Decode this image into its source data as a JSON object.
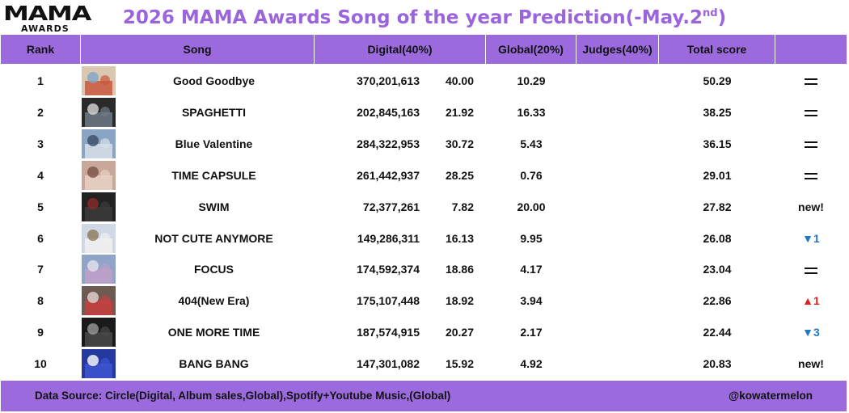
{
  "logo": {
    "main": "MAMA",
    "sub": "AWARDS"
  },
  "title": {
    "text": "2026 MAMA Awards Song of the year Prediction(-May.2",
    "sup": "nd",
    "tail": ")"
  },
  "colors": {
    "accent": "#9b6bde",
    "title": "#9a64dd",
    "down": "#1f76c4",
    "up": "#e02020"
  },
  "headers": {
    "rank": "Rank",
    "song": "Song",
    "digital": "Digital(40%)",
    "global": "Global(20%)",
    "judges": "Judges(40%)",
    "total": "Total score",
    "change": ""
  },
  "chart_data": {
    "type": "table",
    "columns": [
      "Rank",
      "Song",
      "Digital(40%)",
      "",
      "Global(20%)",
      "Judges(40%)",
      "Total score",
      ""
    ],
    "rows": [
      {
        "rank": "1",
        "song": "Good Goodbye",
        "streams": "370,201,613",
        "digital_score": "40.00",
        "global": "10.29",
        "judges": "",
        "total": "50.29",
        "change_type": "same",
        "change": ""
      },
      {
        "rank": "2",
        "song": "SPAGHETTI",
        "streams": "202,845,163",
        "digital_score": "21.92",
        "global": "16.33",
        "judges": "",
        "total": "38.25",
        "change_type": "same",
        "change": ""
      },
      {
        "rank": "3",
        "song": "Blue Valentine",
        "streams": "284,322,953",
        "digital_score": "30.72",
        "global": "5.43",
        "judges": "",
        "total": "36.15",
        "change_type": "same",
        "change": ""
      },
      {
        "rank": "4",
        "song": "TIME CAPSULE",
        "streams": "261,442,937",
        "digital_score": "28.25",
        "global": "0.76",
        "judges": "",
        "total": "29.01",
        "change_type": "same",
        "change": ""
      },
      {
        "rank": "5",
        "song": "SWIM",
        "streams": "72,377,261",
        "digital_score": "7.82",
        "global": "20.00",
        "judges": "",
        "total": "27.82",
        "change_type": "new",
        "change": "new!"
      },
      {
        "rank": "6",
        "song": "NOT CUTE ANYMORE",
        "streams": "149,286,311",
        "digital_score": "16.13",
        "global": "9.95",
        "judges": "",
        "total": "26.08",
        "change_type": "down",
        "change": "▼1"
      },
      {
        "rank": "7",
        "song": "FOCUS",
        "streams": "174,592,374",
        "digital_score": "18.86",
        "global": "4.17",
        "judges": "",
        "total": "23.04",
        "change_type": "same",
        "change": ""
      },
      {
        "rank": "8",
        "song": "404(New Era)",
        "streams": "175,107,448",
        "digital_score": "18.92",
        "global": "3.94",
        "judges": "",
        "total": "22.86",
        "change_type": "up",
        "change": "▲1"
      },
      {
        "rank": "9",
        "song": "ONE MORE TIME",
        "streams": "187,574,915",
        "digital_score": "20.27",
        "global": "2.17",
        "judges": "",
        "total": "22.44",
        "change_type": "down",
        "change": "▼3"
      },
      {
        "rank": "10",
        "song": "BANG BANG",
        "streams": "147,301,082",
        "digital_score": "15.92",
        "global": "4.92",
        "judges": "",
        "total": "20.83",
        "change_type": "new",
        "change": "new!"
      }
    ]
  },
  "footer": {
    "source": "Data Source: Circle(Digital, Album sales,Global),Spotify+Youtube Music,(Global)",
    "handle": "@kowatermelon"
  }
}
